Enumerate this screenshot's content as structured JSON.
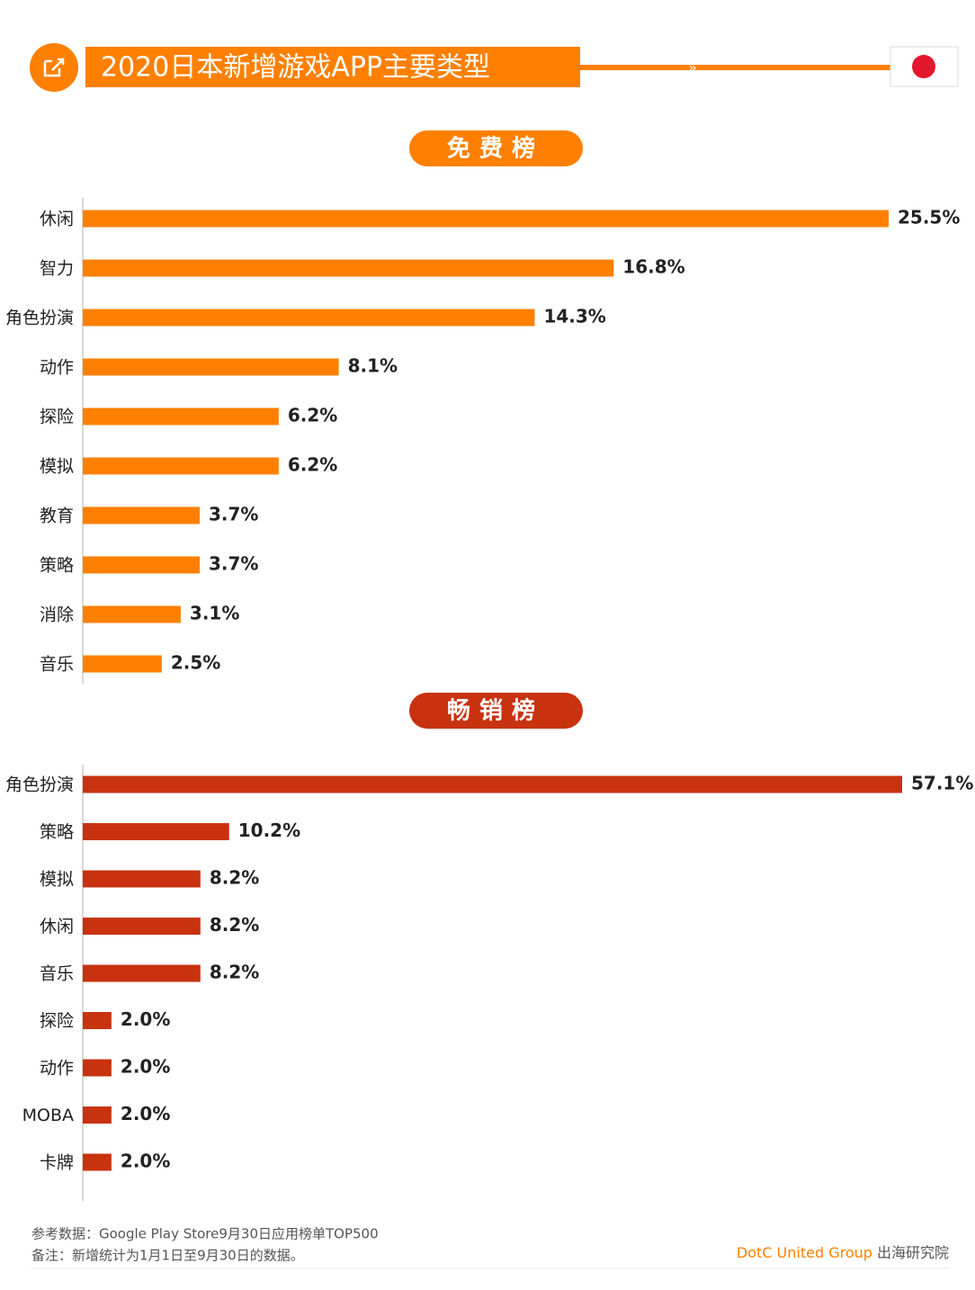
{
  "title": "2020日本新增游戏APP主要类型",
  "chart_data": [
    {
      "type": "bar",
      "orientation": "horizontal",
      "title": "免费榜",
      "categories": [
        "休闲",
        "智力",
        "角色扮演",
        "动作",
        "探险",
        "模拟",
        "教育",
        "策略",
        "消除",
        "音乐"
      ],
      "values": [
        25.5,
        16.8,
        14.3,
        8.1,
        6.2,
        6.2,
        3.7,
        3.7,
        3.1,
        2.5
      ],
      "value_labels": [
        "25.5%",
        "16.8%",
        "14.3%",
        "8.1%",
        "6.2%",
        "6.2%",
        "3.7%",
        "3.7%",
        "3.1%",
        "2.5%"
      ],
      "color": "#ff8000"
    },
    {
      "type": "bar",
      "orientation": "horizontal",
      "title": "畅销榜",
      "categories": [
        "角色扮演",
        "策略",
        "模拟",
        "休闲",
        "音乐",
        "探险",
        "动作",
        "MOBA",
        "卡牌"
      ],
      "values": [
        57.1,
        10.2,
        8.2,
        8.2,
        8.2,
        2.0,
        2.0,
        2.0,
        2.0
      ],
      "value_labels": [
        "57.1%",
        "10.2%",
        "8.2%",
        "8.2%",
        "8.2%",
        "2.0%",
        "2.0%",
        "2.0%",
        "2.0%"
      ],
      "color": "#c8320f"
    }
  ],
  "footer": {
    "notes": [
      "参考数据：Google Play Store9月30日应用榜单TOP500",
      "备注：新增统计为1月1日至9月30日的数据。"
    ],
    "brand": [
      "DotC United Group",
      " 出海研究院"
    ]
  }
}
